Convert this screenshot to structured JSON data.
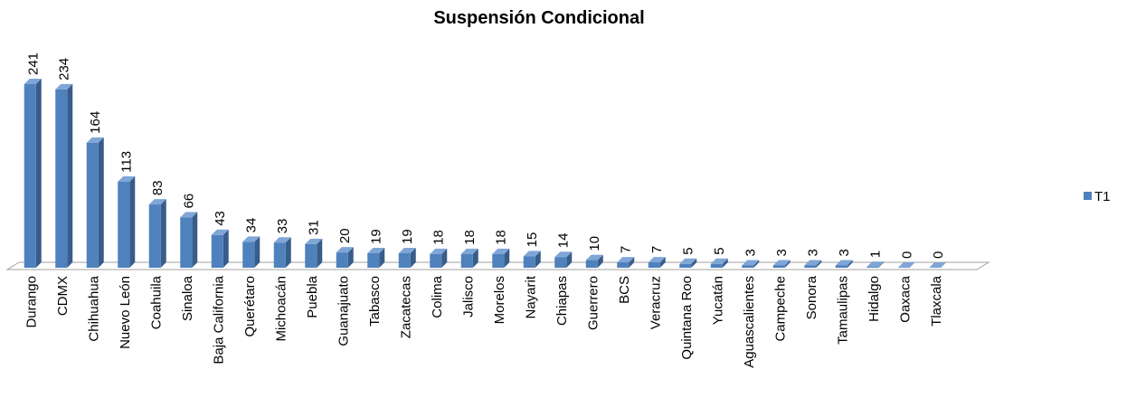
{
  "chart_data": {
    "type": "bar3d",
    "title": "Suspensión Condicional",
    "categories": [
      "Durango",
      "CDMX",
      "Chihuahua",
      "Nuevo León",
      "Coahuila",
      "Sinaloa",
      "Baja California",
      "Querétaro",
      "Michoacán",
      "Puebla",
      "Guanajuato",
      "Tabasco",
      "Zacatecas",
      "Colima",
      "Jalisco",
      "Morelos",
      "Nayarit",
      "Chiapas",
      "Guerrero",
      "BCS",
      "Veracruz",
      "Quintana Roo",
      "Yucatán",
      "Aguascalientes",
      "Campeche",
      "Sonora",
      "Tamaulipas",
      "Hidalgo",
      "Oaxaca",
      "Tlaxcala"
    ],
    "series": [
      {
        "name": "T1",
        "color": "#4f81bd",
        "values": [
          241,
          234,
          164,
          113,
          83,
          66,
          43,
          34,
          33,
          31,
          20,
          19,
          19,
          18,
          18,
          18,
          15,
          14,
          10,
          7,
          7,
          5,
          5,
          3,
          3,
          3,
          3,
          1,
          0,
          0
        ]
      }
    ],
    "legend": "right"
  }
}
